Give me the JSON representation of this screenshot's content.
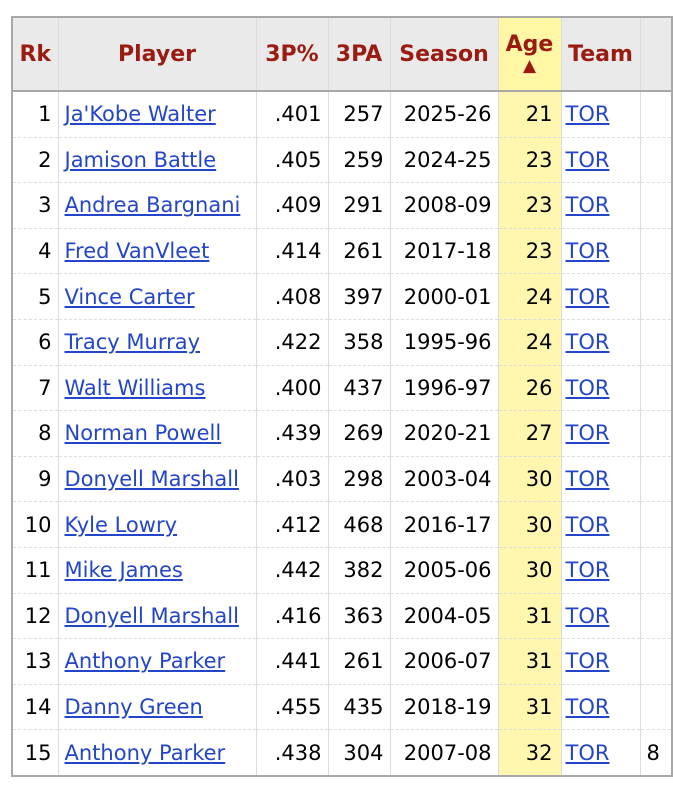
{
  "table": {
    "headers": {
      "rk": "Rk",
      "player": "Player",
      "three_pct": "3P%",
      "three_pa": "3PA",
      "season": "Season",
      "age": "Age",
      "age_sort_indicator": "▲",
      "team": "Team"
    },
    "rows": [
      {
        "rk": "1",
        "player": "Ja'Kobe Walter",
        "three_pct": ".401",
        "three_pa": "257",
        "season": "2025-26",
        "age": "21",
        "team": "TOR"
      },
      {
        "rk": "2",
        "player": "Jamison Battle",
        "three_pct": ".405",
        "three_pa": "259",
        "season": "2024-25",
        "age": "23",
        "team": "TOR"
      },
      {
        "rk": "3",
        "player": "Andrea Bargnani",
        "three_pct": ".409",
        "three_pa": "291",
        "season": "2008-09",
        "age": "23",
        "team": "TOR"
      },
      {
        "rk": "4",
        "player": "Fred VanVleet",
        "three_pct": ".414",
        "three_pa": "261",
        "season": "2017-18",
        "age": "23",
        "team": "TOR"
      },
      {
        "rk": "5",
        "player": "Vince Carter",
        "three_pct": ".408",
        "three_pa": "397",
        "season": "2000-01",
        "age": "24",
        "team": "TOR"
      },
      {
        "rk": "6",
        "player": "Tracy Murray",
        "three_pct": ".422",
        "three_pa": "358",
        "season": "1995-96",
        "age": "24",
        "team": "TOR"
      },
      {
        "rk": "7",
        "player": "Walt Williams",
        "three_pct": ".400",
        "three_pa": "437",
        "season": "1996-97",
        "age": "26",
        "team": "TOR"
      },
      {
        "rk": "8",
        "player": "Norman Powell",
        "three_pct": ".439",
        "three_pa": "269",
        "season": "2020-21",
        "age": "27",
        "team": "TOR"
      },
      {
        "rk": "9",
        "player": "Donyell Marshall",
        "three_pct": ".403",
        "three_pa": "298",
        "season": "2003-04",
        "age": "30",
        "team": "TOR"
      },
      {
        "rk": "10",
        "player": "Kyle Lowry",
        "three_pct": ".412",
        "three_pa": "468",
        "season": "2016-17",
        "age": "30",
        "team": "TOR"
      },
      {
        "rk": "11",
        "player": "Mike James",
        "three_pct": ".442",
        "three_pa": "382",
        "season": "2005-06",
        "age": "30",
        "team": "TOR"
      },
      {
        "rk": "12",
        "player": "Donyell Marshall",
        "three_pct": ".416",
        "three_pa": "363",
        "season": "2004-05",
        "age": "31",
        "team": "TOR"
      },
      {
        "rk": "13",
        "player": "Anthony Parker",
        "three_pct": ".441",
        "three_pa": "261",
        "season": "2006-07",
        "age": "31",
        "team": "TOR"
      },
      {
        "rk": "14",
        "player": "Danny Green",
        "three_pct": ".455",
        "three_pa": "435",
        "season": "2018-19",
        "age": "31",
        "team": "TOR"
      },
      {
        "rk": "15",
        "player": "Anthony Parker",
        "three_pct": ".438",
        "three_pa": "304",
        "season": "2007-08",
        "age": "32",
        "team": "TOR",
        "extra": "8"
      }
    ]
  }
}
